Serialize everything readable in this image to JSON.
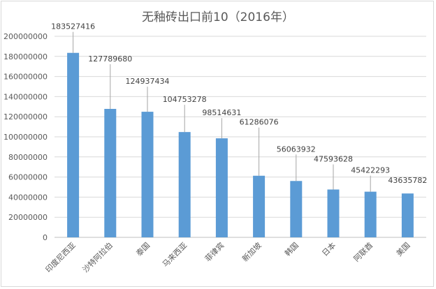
{
  "chart_data": {
    "type": "bar",
    "title": "无釉砖出口前10（2016年）",
    "categories": [
      "印度尼西亚",
      "沙特阿拉伯",
      "泰国",
      "马来西亚",
      "菲律宾",
      "新加坡",
      "韩国",
      "日本",
      "阿联酋",
      "美国"
    ],
    "values": [
      183527416,
      127789680,
      124937434,
      104753278,
      98514631,
      61286076,
      56063932,
      47593628,
      45422293,
      43635782
    ],
    "ylim": [
      0,
      200000000
    ],
    "yticks": [
      "0",
      "20000000",
      "40000000",
      "60000000",
      "80000000",
      "100000000",
      "120000000",
      "140000000",
      "160000000",
      "180000000",
      "200000000"
    ],
    "xlabel": "",
    "ylabel": "",
    "grid": true,
    "legend": "none",
    "bar_color": "#5b9bd5",
    "gridline_color": "#d9d9d9"
  }
}
